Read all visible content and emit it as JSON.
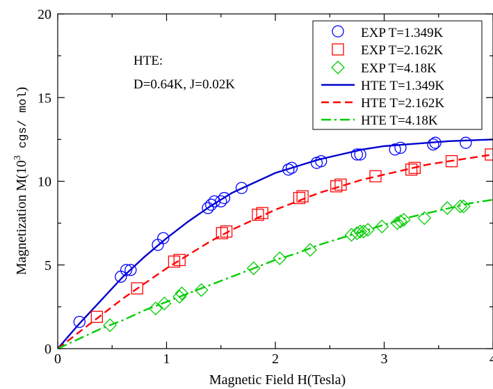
{
  "chart_data": {
    "type": "scatter",
    "xlabel": "Magnetic Field H(Tesla)",
    "ylabel": {
      "prefix": "Magnetization M(10",
      "exponent": "3",
      "units": " cgs/ mol",
      "suffix": ")"
    },
    "xlim": [
      0,
      4
    ],
    "ylim": [
      0,
      20
    ],
    "x_ticks": [
      0,
      1,
      2,
      3,
      4
    ],
    "y_ticks": [
      0,
      5,
      10,
      15,
      20
    ],
    "x_tick_labels": [
      "0",
      "1",
      "2",
      "3",
      "4"
    ],
    "y_tick_labels": [
      "0",
      "5",
      "10",
      "15",
      "20"
    ],
    "annotation": [
      "HTE:",
      "D=0.64K, J=0.02K"
    ],
    "legend_position": "top-right",
    "series": [
      {
        "name": "EXP T=1.349K",
        "kind": "markers",
        "marker": "circle",
        "color": "#0000ff",
        "x": [
          0.2,
          0.58,
          0.63,
          0.67,
          0.92,
          0.97,
          1.38,
          1.41,
          1.44,
          1.5,
          1.53,
          1.69,
          2.12,
          2.15,
          2.38,
          2.42,
          2.75,
          2.78,
          3.1,
          3.15,
          3.45,
          3.47,
          3.75
        ],
        "y": [
          1.6,
          4.3,
          4.7,
          4.7,
          6.2,
          6.6,
          8.4,
          8.6,
          8.8,
          8.8,
          9.0,
          9.6,
          10.7,
          10.8,
          11.1,
          11.2,
          11.6,
          11.6,
          11.9,
          12.0,
          12.2,
          12.3,
          12.3
        ]
      },
      {
        "name": "EXP T=2.162K",
        "kind": "markers",
        "marker": "square",
        "color": "#ff0000",
        "x": [
          0.36,
          0.73,
          1.07,
          1.12,
          1.51,
          1.55,
          1.84,
          1.88,
          2.22,
          2.25,
          2.56,
          2.6,
          2.92,
          3.25,
          3.28,
          3.62,
          3.98
        ],
        "y": [
          1.9,
          3.6,
          5.2,
          5.3,
          6.9,
          7.0,
          8.0,
          8.1,
          9.0,
          9.1,
          9.7,
          9.8,
          10.3,
          10.7,
          10.8,
          11.2,
          11.6
        ]
      },
      {
        "name": "EXP T=4.18K",
        "kind": "markers",
        "marker": "diamond",
        "color": "#00cc00",
        "x": [
          0.48,
          0.9,
          0.98,
          1.12,
          1.14,
          1.32,
          1.8,
          2.04,
          2.32,
          2.7,
          2.75,
          2.78,
          2.81,
          2.85,
          2.98,
          3.12,
          3.15,
          3.18,
          3.37,
          3.58,
          3.7,
          3.73
        ],
        "y": [
          1.4,
          2.4,
          2.7,
          3.1,
          3.3,
          3.5,
          4.8,
          5.4,
          5.9,
          6.8,
          6.9,
          7.0,
          7.0,
          7.1,
          7.3,
          7.5,
          7.6,
          7.7,
          7.8,
          8.4,
          8.5,
          8.5
        ]
      },
      {
        "name": "HTE T=1.349K",
        "kind": "line",
        "dash": "solid",
        "color": "#0000cc",
        "x": [
          0,
          0.2,
          0.4,
          0.6,
          0.8,
          1.0,
          1.2,
          1.4,
          1.6,
          1.8,
          2.0,
          2.2,
          2.4,
          2.6,
          2.8,
          3.0,
          3.2,
          3.4,
          3.6,
          3.8,
          4.0
        ],
        "y": [
          0,
          1.5,
          2.9,
          4.3,
          5.5,
          6.6,
          7.6,
          8.5,
          9.3,
          9.9,
          10.5,
          10.9,
          11.3,
          11.6,
          11.9,
          12.1,
          12.2,
          12.3,
          12.4,
          12.45,
          12.5
        ]
      },
      {
        "name": "HTE T=2.162K",
        "kind": "line",
        "dash": "dashed",
        "color": "#ff0000",
        "x": [
          0,
          0.2,
          0.4,
          0.6,
          0.8,
          1.0,
          1.2,
          1.4,
          1.6,
          1.8,
          2.0,
          2.2,
          2.4,
          2.6,
          2.8,
          3.0,
          3.2,
          3.4,
          3.6,
          3.8,
          4.0
        ],
        "y": [
          0,
          1.0,
          2.0,
          3.0,
          3.9,
          4.8,
          5.6,
          6.4,
          7.1,
          7.7,
          8.3,
          8.8,
          9.3,
          9.7,
          10.1,
          10.4,
          10.7,
          11.0,
          11.2,
          11.4,
          11.6
        ]
      },
      {
        "name": "HTE T=4.18K",
        "kind": "line",
        "dash": "dashdot",
        "color": "#00cc00",
        "x": [
          0,
          0.2,
          0.4,
          0.6,
          0.8,
          1.0,
          1.2,
          1.4,
          1.6,
          1.8,
          2.0,
          2.2,
          2.4,
          2.6,
          2.8,
          3.0,
          3.2,
          3.4,
          3.6,
          3.8,
          4.0
        ],
        "y": [
          0,
          0.6,
          1.2,
          1.7,
          2.3,
          2.8,
          3.3,
          3.8,
          4.3,
          4.8,
          5.3,
          5.7,
          6.2,
          6.6,
          7.0,
          7.4,
          7.8,
          8.1,
          8.4,
          8.7,
          8.9
        ]
      }
    ]
  }
}
